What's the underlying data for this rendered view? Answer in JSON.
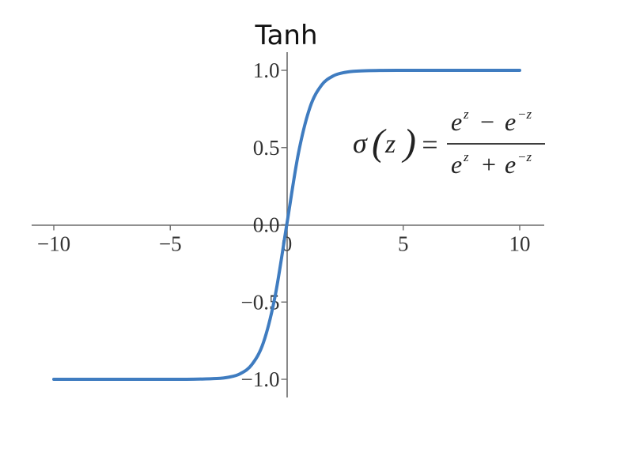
{
  "chart_data": {
    "type": "line",
    "title": "Tanh",
    "function": "tanh",
    "xlim": [
      -10,
      10
    ],
    "ylim": [
      -1.0,
      1.0
    ],
    "x_ticks": [
      -10,
      -5,
      0,
      5,
      10
    ],
    "y_ticks": [
      -1.0,
      -0.5,
      0.0,
      0.5,
      1.0
    ],
    "x_tick_labels": [
      "−10",
      "−5",
      "0",
      "5",
      "10"
    ],
    "y_tick_labels": [
      "−1.0",
      "−0.5",
      "0.0",
      "0.5",
      "1.0"
    ],
    "series": [
      {
        "color": "#3f7cc0",
        "x": [
          -10,
          -8,
          -6,
          -5,
          -4,
          -3,
          -2.5,
          -2,
          -1.5,
          -1,
          -0.5,
          0,
          0.5,
          1,
          1.5,
          2,
          2.5,
          3,
          4,
          5,
          6,
          8,
          10
        ],
        "y": [
          -1.0,
          -1.0,
          -1.0,
          -0.9999,
          -0.9993,
          -0.9951,
          -0.9866,
          -0.964,
          -0.9051,
          -0.7616,
          -0.4621,
          0.0,
          0.4621,
          0.7616,
          0.9051,
          0.964,
          0.9866,
          0.9951,
          0.9993,
          0.9999,
          1.0,
          1.0,
          1.0
        ]
      }
    ],
    "annotations": {
      "formula": {
        "lhs_sigma": "σ",
        "lhs_open": "(",
        "lhs_var": "z",
        "lhs_close": ")",
        "equals": "=",
        "num_left": "e",
        "num_left_exp": "z",
        "num_op": "−",
        "num_right": "e",
        "num_right_exp": "−z",
        "den_left": "e",
        "den_left_exp": "z",
        "den_op": "+",
        "den_right": "e",
        "den_right_exp": "−z"
      }
    },
    "grid": false,
    "legend": "none"
  }
}
